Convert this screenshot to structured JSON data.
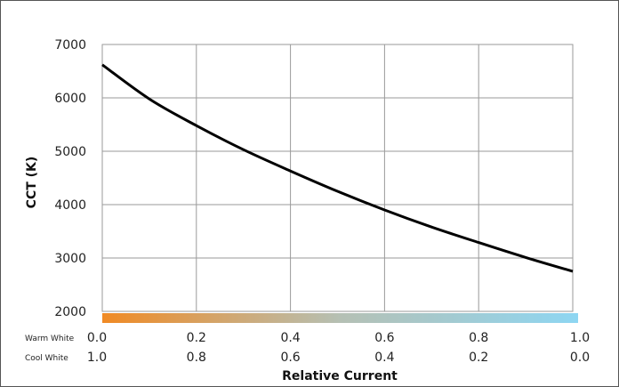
{
  "chart_data": {
    "type": "line",
    "ylabel": "CCT (K)",
    "xlabel": "Relative Current",
    "ylim": [
      2000,
      7000
    ],
    "xlim": [
      0,
      1
    ],
    "grid": true,
    "yticks": [
      "2000",
      "3000",
      "4000",
      "5000",
      "6000",
      "7000"
    ],
    "yticks_values": [
      2000,
      3000,
      4000,
      5000,
      6000,
      7000
    ],
    "xticks_values": [
      0,
      0.2,
      0.4,
      0.6,
      0.8,
      1.0
    ],
    "warm_row": {
      "label": "Warm White",
      "ticks": [
        "0.0",
        "0.2",
        "0.4",
        "0.6",
        "0.8",
        "1.0"
      ]
    },
    "cool_row": {
      "label": "Cool White",
      "ticks": [
        "1.0",
        "0.8",
        "0.6",
        "0.4",
        "0.2",
        "0.0"
      ]
    },
    "series": [
      {
        "x": [
          0,
          0.1,
          0.2,
          0.3,
          0.4,
          0.5,
          0.6,
          0.7,
          0.8,
          0.9,
          1.0
        ],
        "values": [
          6620,
          5980,
          5480,
          5030,
          4630,
          4250,
          3900,
          3580,
          3290,
          3010,
          2750
        ]
      }
    ],
    "colors": {
      "line": "#000000",
      "grid": "#9a9a9a",
      "gradient_start": "#f08a24",
      "gradient_mid": "#b5c0b4",
      "gradient_end": "#8ed6f2"
    }
  }
}
